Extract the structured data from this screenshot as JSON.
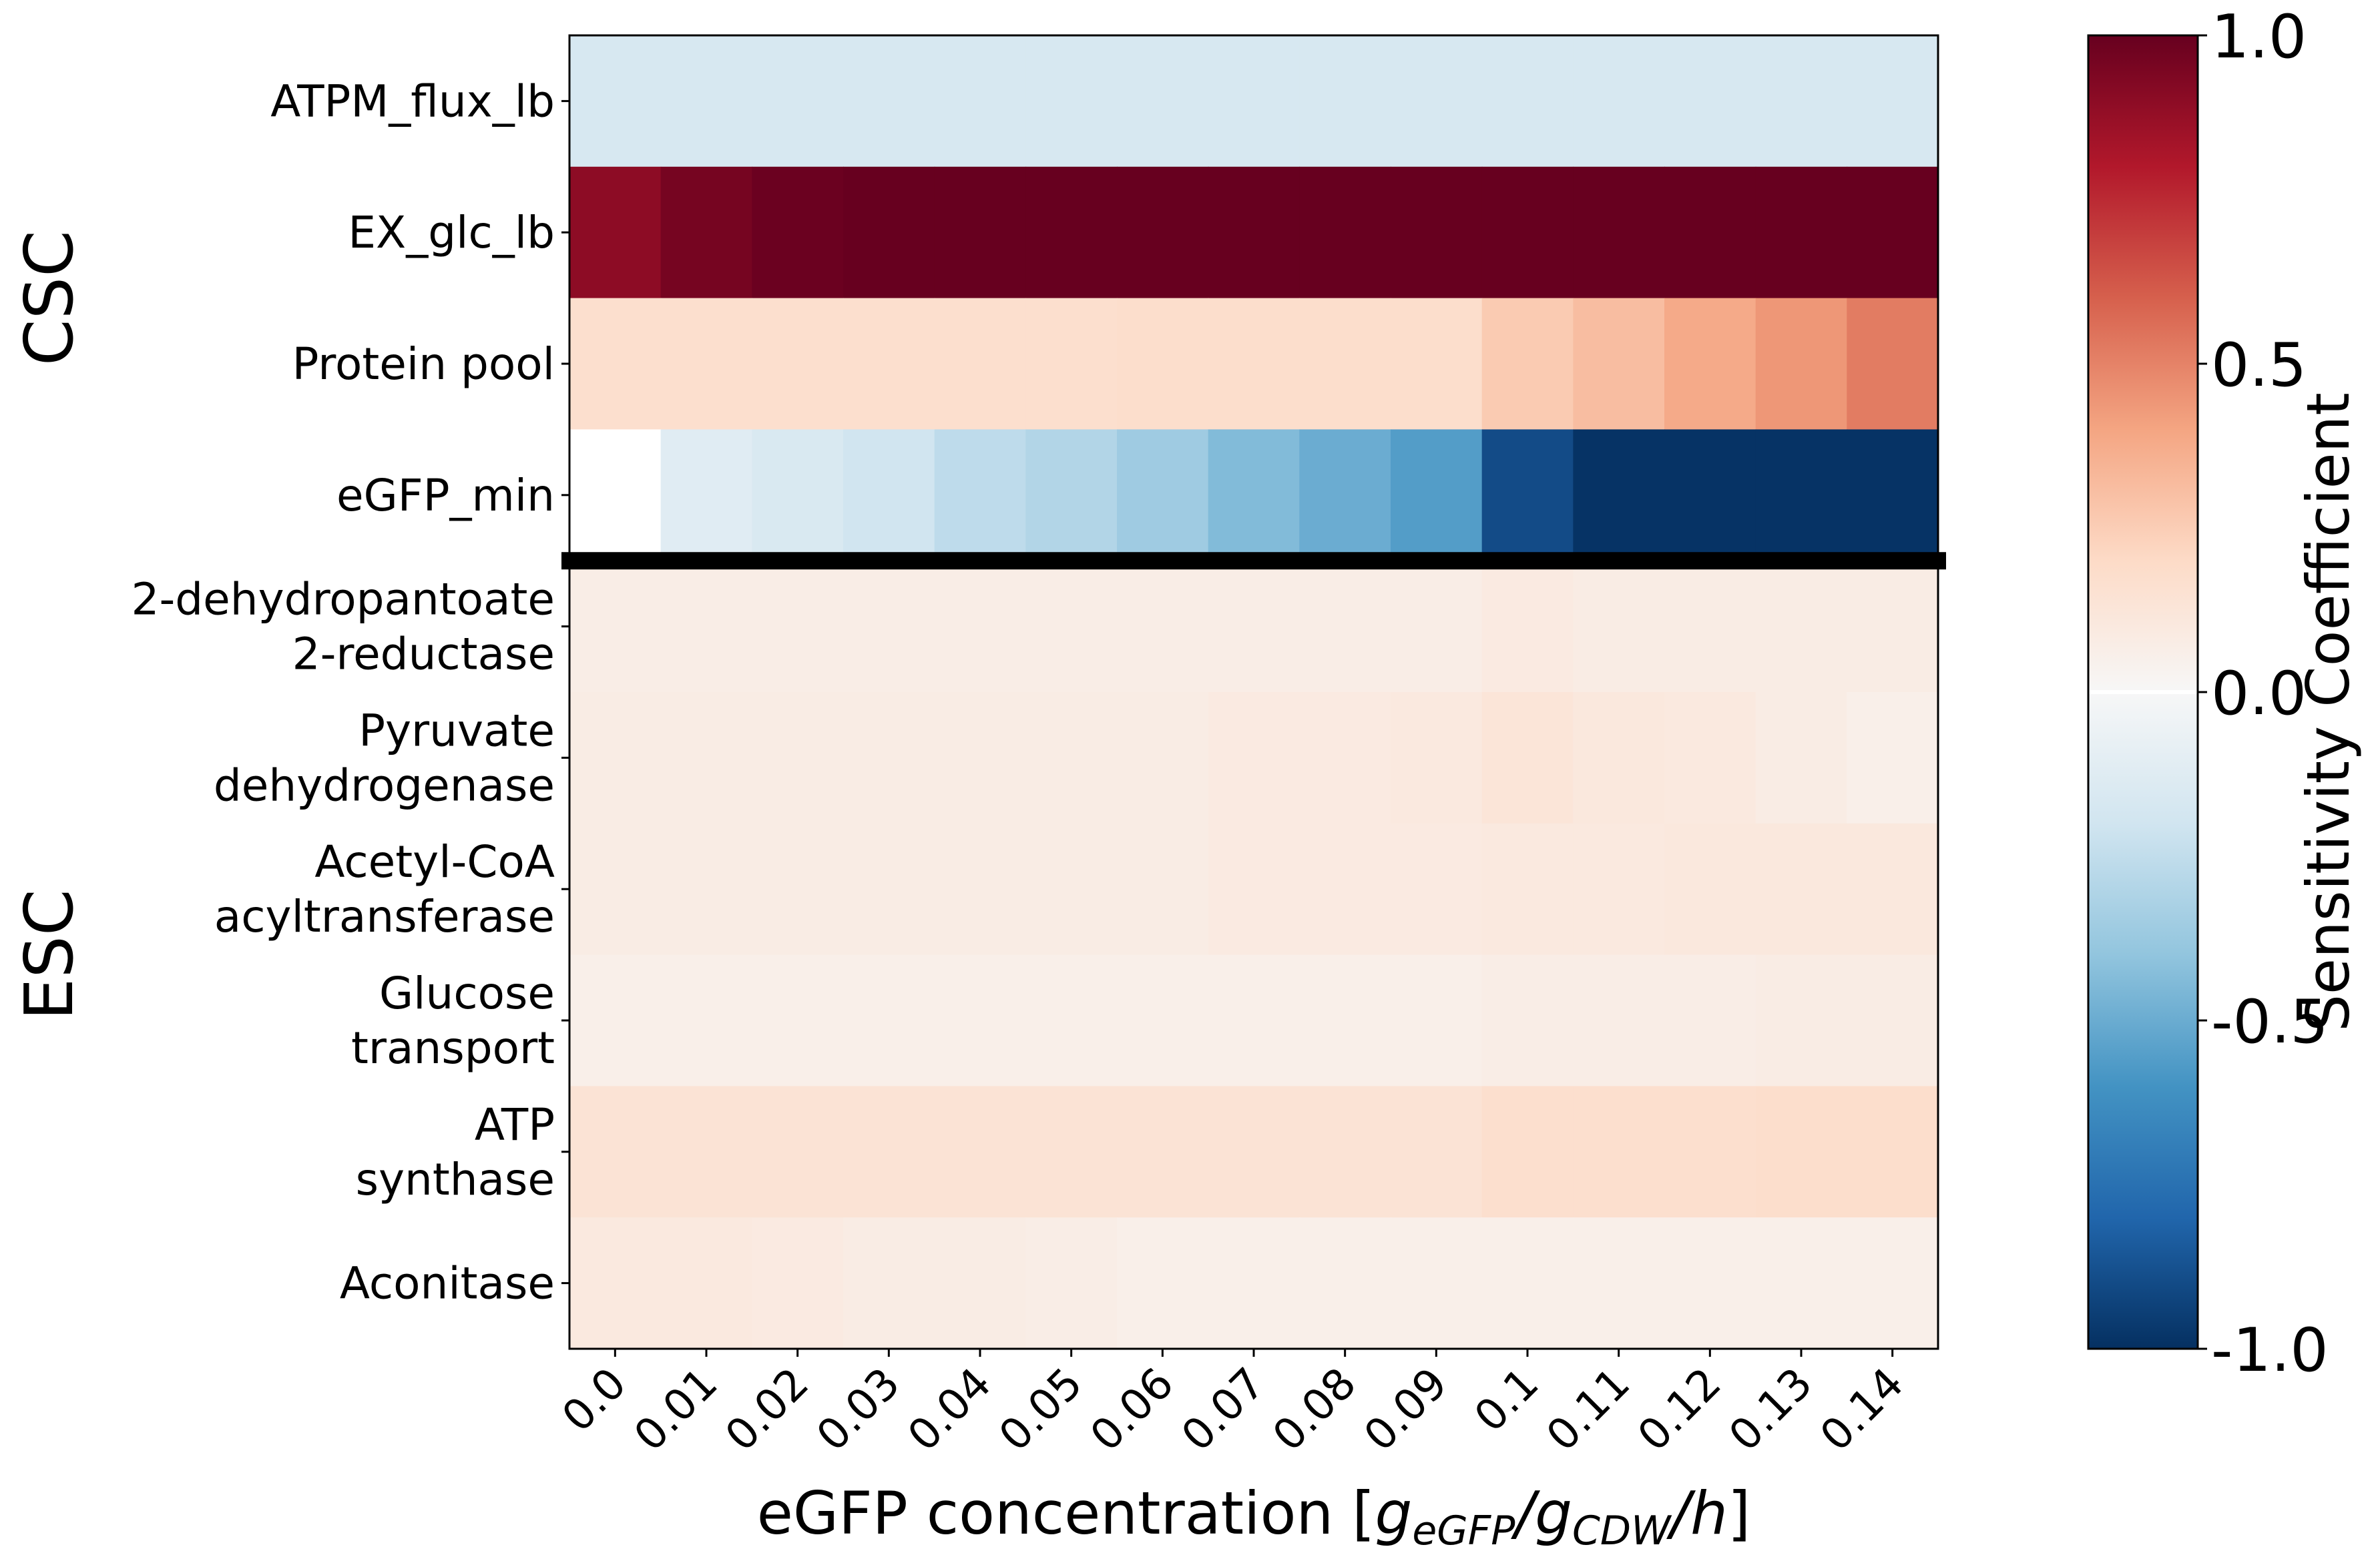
{
  "chart_data": {
    "type": "heatmap",
    "xlabel_parts": [
      "eGFP concentration [",
      "g",
      "eGFP",
      "/",
      "g",
      "CDW",
      "/",
      "h",
      "]"
    ],
    "x": [
      "0.0",
      "0.01",
      "0.02",
      "0.03",
      "0.04",
      "0.05",
      "0.06",
      "0.07",
      "0.08",
      "0.09",
      "0.1",
      "0.11",
      "0.12",
      "0.13",
      "0.14"
    ],
    "groups": [
      {
        "label": "CSC",
        "rows": [
          {
            "lines": [
              "ATPM_flux_lb"
            ],
            "values": [
              -0.17,
              -0.17,
              -0.17,
              -0.17,
              -0.17,
              -0.17,
              -0.17,
              -0.17,
              -0.17,
              -0.17,
              -0.17,
              -0.17,
              -0.17,
              -0.17,
              -0.17
            ]
          },
          {
            "lines": [
              "EX_glc_lb"
            ],
            "values": [
              0.9,
              0.96,
              0.99,
              1.0,
              1.0,
              1.0,
              1.0,
              1.0,
              1.0,
              1.0,
              1.0,
              1.0,
              1.0,
              1.0,
              1.0
            ]
          },
          {
            "lines": [
              "Protein pool"
            ],
            "values": [
              0.17,
              0.17,
              0.17,
              0.17,
              0.17,
              0.17,
              0.18,
              0.18,
              0.18,
              0.18,
              0.26,
              0.31,
              0.38,
              0.44,
              0.52
            ]
          },
          {
            "lines": [
              "eGFP_min"
            ],
            "values": [
              0.0,
              -0.12,
              -0.16,
              -0.2,
              -0.26,
              -0.3,
              -0.36,
              -0.44,
              -0.5,
              -0.56,
              -0.9,
              -0.99,
              -0.99,
              -0.99,
              -0.99
            ]
          }
        ]
      },
      {
        "label": "ESC",
        "rows": [
          {
            "lines": [
              "2-dehydropantoate",
              "2-reductase"
            ],
            "values": [
              0.07,
              0.07,
              0.07,
              0.07,
              0.07,
              0.07,
              0.07,
              0.07,
              0.07,
              0.07,
              0.09,
              0.08,
              0.08,
              0.08,
              0.08
            ]
          },
          {
            "lines": [
              "Pyruvate",
              "dehydrogenase"
            ],
            "values": [
              0.08,
              0.08,
              0.08,
              0.08,
              0.08,
              0.08,
              0.08,
              0.09,
              0.09,
              0.1,
              0.13,
              0.11,
              0.1,
              0.08,
              0.06
            ]
          },
          {
            "lines": [
              "Acetyl-CoA",
              "acyltransferase"
            ],
            "values": [
              0.08,
              0.08,
              0.08,
              0.08,
              0.08,
              0.08,
              0.08,
              0.09,
              0.09,
              0.09,
              0.1,
              0.1,
              0.11,
              0.11,
              0.11
            ]
          },
          {
            "lines": [
              "Glucose",
              "transport"
            ],
            "values": [
              0.06,
              0.06,
              0.06,
              0.06,
              0.06,
              0.06,
              0.06,
              0.06,
              0.06,
              0.06,
              0.07,
              0.07,
              0.07,
              0.08,
              0.08
            ]
          },
          {
            "lines": [
              "ATP",
              "synthase"
            ],
            "values": [
              0.14,
              0.14,
              0.14,
              0.14,
              0.14,
              0.14,
              0.14,
              0.14,
              0.14,
              0.14,
              0.17,
              0.17,
              0.17,
              0.18,
              0.18
            ]
          },
          {
            "lines": [
              "Aconitase"
            ],
            "values": [
              0.1,
              0.1,
              0.09,
              0.08,
              0.08,
              0.07,
              0.06,
              0.06,
              0.06,
              0.06,
              0.06,
              0.06,
              0.06,
              0.06,
              0.06
            ]
          }
        ]
      }
    ],
    "colorbar": {
      "label": "Sensitivity Coefficient",
      "range": [
        -1.0,
        1.0
      ],
      "ticks": [
        "1.0",
        "0.5",
        "0.0",
        "-0.5",
        "-1.0"
      ],
      "colormap": "RdBu_r",
      "stops": [
        "#053061",
        "#2166ac",
        "#4393c3",
        "#92c5de",
        "#d1e5f0",
        "#f7f7f7",
        "#fddbc7",
        "#f4a582",
        "#d6604d",
        "#b2182b",
        "#67001f"
      ]
    }
  }
}
